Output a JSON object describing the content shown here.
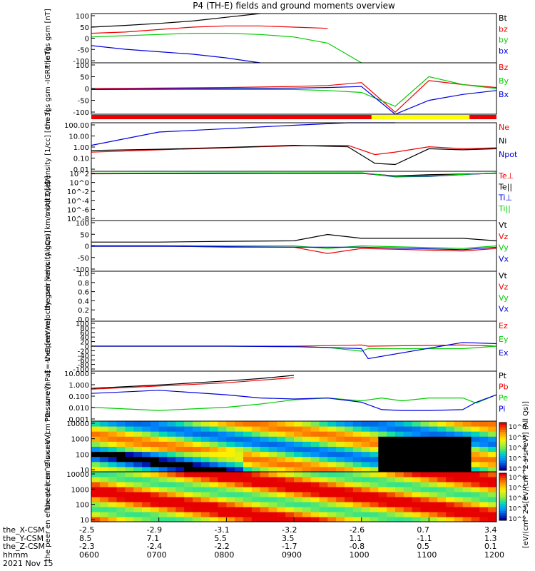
{
  "title": "P4 (TH-E) fields and ground moments overview",
  "footer_date": "2021 Nov 15",
  "x_axis": {
    "ticks": [
      "0600",
      "0700",
      "0800",
      "0900",
      "1000",
      "1100",
      "1200"
    ],
    "ephemeris_rows": [
      {
        "label": "the_X-CSM",
        "values": [
          "-2.5",
          "-2.9",
          "-3.1",
          "-3.2",
          "-2.6",
          "0.7",
          "3.4"
        ]
      },
      {
        "label": "the_Y-CSM",
        "values": [
          "8.5",
          "7.1",
          "5.5",
          "3.5",
          "1.1",
          "-1.1",
          "1.3"
        ]
      },
      {
        "label": "the_Z-CSM",
        "values": [
          "-2.3",
          "-2.4",
          "-2.2",
          "-1.7",
          "-0.8",
          "0.5",
          "0.1"
        ]
      },
      {
        "label": "hhmm",
        "values": [
          "0600",
          "0700",
          "0800",
          "0900",
          "1000",
          "1100",
          "1200"
        ]
      }
    ]
  },
  "colorbar": {
    "label": "[eV/(cm^2-s[eV/(cm^2-s-sr-eV)] (All Qs)]",
    "ticks": [
      "10^6",
      "10^5",
      "10^4",
      "10^3",
      "10^2"
    ]
  },
  "colors": {
    "black": "#000000",
    "red": "#ee0000",
    "green": "#00cc00",
    "blue": "#0000dd",
    "yellow": "#ffff00"
  },
  "chart_data": [
    {
      "type": "line",
      "ylabel": "the fgs gsm [nT]",
      "ylim": [
        -100,
        100
      ],
      "yticks": [
        "100",
        "50",
        "0",
        "-50",
        "-100"
      ],
      "x": [
        6.0,
        6.5,
        7.0,
        7.5,
        8.0,
        8.5,
        9.0,
        9.5,
        10.0
      ],
      "series": [
        {
          "name": "Bt",
          "color": "#000000",
          "values": [
            45,
            52,
            60,
            70,
            85,
            100,
            null,
            null,
            null
          ]
        },
        {
          "name": "bz",
          "color": "#ee0000",
          "values": [
            20,
            25,
            35,
            45,
            50,
            50,
            45,
            40,
            null
          ]
        },
        {
          "name": "by",
          "color": "#00cc00",
          "values": [
            5,
            10,
            15,
            20,
            20,
            15,
            5,
            -20,
            -100
          ]
        },
        {
          "name": "bx",
          "color": "#0000dd",
          "values": [
            -30,
            -45,
            -55,
            -65,
            -80,
            -100,
            null,
            null,
            null
          ]
        }
      ]
    },
    {
      "type": "line",
      "ylabel": "the fgs gsm -IGRF [nT]",
      "ylim": [
        -130,
        130
      ],
      "yticks": [
        "100",
        "50",
        "0",
        "-50",
        "-100"
      ],
      "x": [
        6.0,
        7.0,
        8.0,
        9.0,
        9.5,
        10.0,
        10.5,
        11.0,
        11.5,
        12.0
      ],
      "series": [
        {
          "name": "Bz",
          "color": "#ee0000",
          "values": [
            0,
            2,
            5,
            10,
            15,
            30,
            -120,
            40,
            20,
            5
          ]
        },
        {
          "name": "By",
          "color": "#00cc00",
          "values": [
            -5,
            -5,
            -5,
            -5,
            -10,
            -20,
            -90,
            60,
            20,
            0
          ]
        },
        {
          "name": "Bx",
          "color": "#0000dd",
          "values": [
            -5,
            -2,
            0,
            2,
            5,
            10,
            -130,
            -60,
            -30,
            -10
          ]
        }
      ]
    },
    {
      "type": "line",
      "ylabel": "Density [1/cc] [cm-3]",
      "ylog": true,
      "ylim": [
        0.01,
        200
      ],
      "yticks": [
        "100.00",
        "10.00",
        "1.00",
        "0.10",
        "0.01"
      ],
      "x": [
        6.0,
        7.0,
        8.0,
        9.0,
        9.8,
        10.2,
        10.5,
        11.0,
        11.5,
        12.0
      ],
      "series": [
        {
          "name": "Ne",
          "color": "#ee0000",
          "values": [
            0.5,
            0.8,
            1.2,
            1.8,
            2.0,
            0.3,
            0.5,
            1.5,
            1.0,
            1.2
          ]
        },
        {
          "name": "Ni",
          "color": "#000000",
          "values": [
            0.7,
            0.9,
            1.3,
            2.0,
            1.5,
            0.05,
            0.04,
            1.0,
            0.8,
            1.0
          ]
        },
        {
          "name": "Npot",
          "color": "#0000dd",
          "values": [
            2,
            30,
            60,
            120,
            200,
            null,
            200,
            null,
            null,
            null
          ]
        }
      ]
    },
    {
      "type": "line",
      "ylabel": "moqt3 [eV]",
      "ylog": true,
      "ylim": [
        1e-09,
        300
      ],
      "yticks": [
        "10^2",
        "10^0",
        "10^-2",
        "10^-4",
        "10^-6",
        "10^-8"
      ],
      "x": [
        6.0,
        8.0,
        10.0,
        10.5,
        11.0,
        11.5,
        12.0
      ],
      "series": [
        {
          "name": "Te⊥",
          "color": "#ee0000",
          "values": [
            80,
            90,
            100,
            20,
            40,
            60,
            100
          ]
        },
        {
          "name": "Te||",
          "color": "#000000",
          "values": [
            90,
            100,
            110,
            25,
            50,
            70,
            110
          ]
        },
        {
          "name": "Ti⊥",
          "color": "#0000dd",
          "values": [
            100,
            120,
            130,
            15,
            20,
            50,
            120
          ]
        },
        {
          "name": "Ti||",
          "color": "#00cc00",
          "values": [
            110,
            130,
            140,
            18,
            25,
            55,
            130
          ]
        }
      ]
    },
    {
      "type": "line",
      "ylabel": "the peir velocity gsm [km/s (All Qs)]",
      "ylim": [
        -100,
        100
      ],
      "yticks": [
        "100",
        "50",
        "0",
        "-50",
        "-100"
      ],
      "x": [
        6.0,
        7.0,
        8.0,
        9.0,
        9.5,
        10.0,
        11.5,
        12.0
      ],
      "series": [
        {
          "name": "Vt",
          "color": "#000000",
          "values": [
            15,
            15,
            18,
            20,
            45,
            30,
            30,
            20
          ]
        },
        {
          "name": "Vz",
          "color": "#ee0000",
          "values": [
            0,
            0,
            -5,
            -5,
            -30,
            -10,
            -20,
            -10
          ]
        },
        {
          "name": "Vy",
          "color": "#00cc00",
          "values": [
            2,
            2,
            0,
            0,
            -10,
            0,
            -10,
            0
          ]
        },
        {
          "name": "Vx",
          "color": "#0000dd",
          "values": [
            -2,
            -2,
            -3,
            -5,
            -5,
            -5,
            -15,
            -5
          ]
        }
      ]
    },
    {
      "type": "line",
      "ylabel": "the peer velocity gsm [km/s (All Qs)]",
      "ylim": [
        0,
        1
      ],
      "yticks": [
        "1.0",
        "0.8",
        "0.6",
        "0.4",
        "0.2",
        "0.0"
      ],
      "x": [],
      "series": [
        {
          "name": "Vt",
          "color": "#000000",
          "values": []
        },
        {
          "name": "Vz",
          "color": "#ee0000",
          "values": []
        },
        {
          "name": "Vy",
          "color": "#00cc00",
          "values": []
        },
        {
          "name": "Vx",
          "color": "#0000dd",
          "values": []
        }
      ]
    },
    {
      "type": "line",
      "ylabel": "E=-VxB [mV/m]",
      "ylim": [
        -100,
        100
      ],
      "yticks": [
        "100",
        "80",
        "60",
        "40",
        "20",
        "0",
        "-20",
        "-40",
        "-60",
        "-80",
        "-100"
      ],
      "x": [
        6.0,
        8.0,
        9.0,
        9.5,
        10.0,
        10.1,
        11.5,
        12.0
      ],
      "series": [
        {
          "name": "Ez",
          "color": "#ee0000",
          "values": [
            0,
            0,
            0,
            2,
            5,
            0,
            5,
            0
          ]
        },
        {
          "name": "Ey",
          "color": "#00cc00",
          "values": [
            0,
            0,
            -2,
            -5,
            -20,
            -10,
            -10,
            0
          ]
        },
        {
          "name": "Ex",
          "color": "#0000dd",
          "values": [
            0,
            0,
            -2,
            -5,
            -10,
            -50,
            15,
            10
          ]
        }
      ]
    },
    {
      "type": "line",
      "ylabel": "Pressure [nPa]",
      "ylog": true,
      "ylim": [
        0.001,
        50
      ],
      "yticks": [
        "10.000",
        "1.000",
        "0.100",
        "0.010",
        "0.001"
      ],
      "x": [
        6.0,
        7.0,
        8.0,
        8.5,
        9.0,
        9.5,
        10.0,
        10.3,
        10.6,
        11.0,
        11.5,
        11.7,
        12.0
      ],
      "series": [
        {
          "name": "Pt",
          "color": "#000000",
          "values": [
            1.2,
            2.5,
            6,
            10,
            20,
            null,
            null,
            null,
            null,
            null,
            null,
            null,
            null
          ]
        },
        {
          "name": "Pb",
          "color": "#ee0000",
          "values": [
            1.0,
            2.0,
            4,
            7,
            12,
            null,
            null,
            null,
            null,
            null,
            null,
            null,
            null
          ]
        },
        {
          "name": "Pe",
          "color": "#00cc00",
          "values": [
            0.02,
            0.01,
            0.02,
            0.04,
            0.1,
            0.15,
            0.08,
            0.15,
            0.08,
            0.15,
            0.15,
            0.05,
            0.3
          ]
        },
        {
          "name": "Pi",
          "color": "#0000dd",
          "values": [
            0.4,
            0.8,
            0.3,
            0.15,
            0.12,
            0.15,
            0.06,
            0.012,
            0.01,
            0.01,
            0.012,
            0.06,
            0.3
          ]
        }
      ]
    },
    {
      "type": "heatmap",
      "ylabel": "the peir en eflux eV (cm^2-s-sr-eV)",
      "ylog": true,
      "ylim": [
        5,
        30000
      ],
      "yticks": [
        "10000",
        "1000",
        "100",
        "10"
      ]
    },
    {
      "type": "heatmap",
      "ylabel": "the peer en eflux eV (cm^2-s-sr-eV)",
      "ylog": true,
      "ylim": [
        5,
        30000
      ],
      "yticks": [
        "10000",
        "1000",
        "100",
        "10"
      ]
    }
  ]
}
